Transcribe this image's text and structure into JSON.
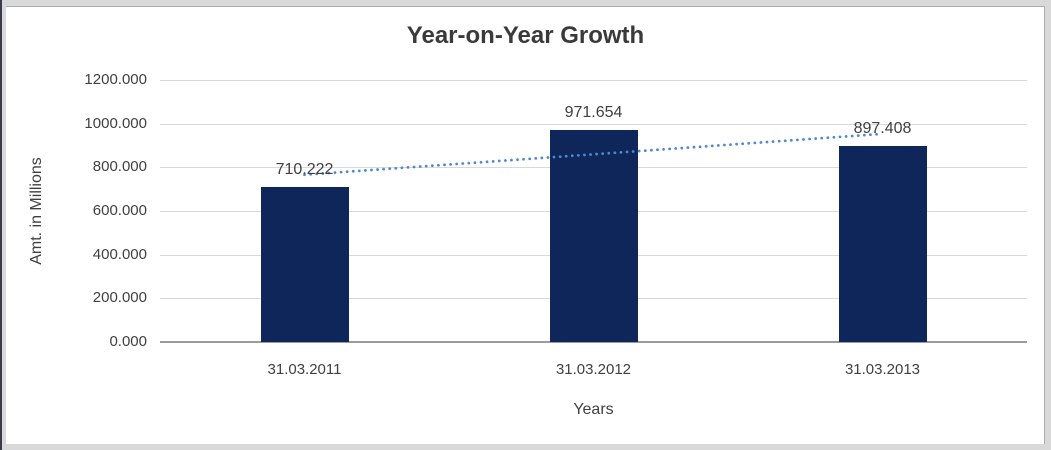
{
  "window": {
    "frame_color": "#D9D9D9",
    "left_edge_color": "#3A3A4E",
    "surface_color": "#FFFFFF"
  },
  "chart_data": {
    "type": "bar",
    "title": "Year-on-Year Growth",
    "categories": [
      "31.03.2011",
      "31.03.2012",
      "31.03.2013"
    ],
    "values": [
      710.222,
      971.654,
      897.408
    ],
    "value_labels": [
      "710.222",
      "971.654",
      "897.408"
    ],
    "xlabel": "Years",
    "ylabel": "Amt. in Millions",
    "ylim": [
      0,
      1200
    ],
    "ytick_step": 200,
    "ytick_labels": [
      "1200.000",
      "1000.000",
      "800.000",
      "600.000",
      "400.000",
      "200.000",
      "0.000"
    ],
    "grid": true,
    "legend": "none",
    "bar_color": "#0E2659",
    "trendline": {
      "type": "linear",
      "style": "dotted",
      "color": "#5089CB"
    },
    "colors": {
      "grid": "#D9D9D9",
      "axis": "#9B9B9B",
      "text": "#404040",
      "title": "#3A3A3A"
    }
  }
}
